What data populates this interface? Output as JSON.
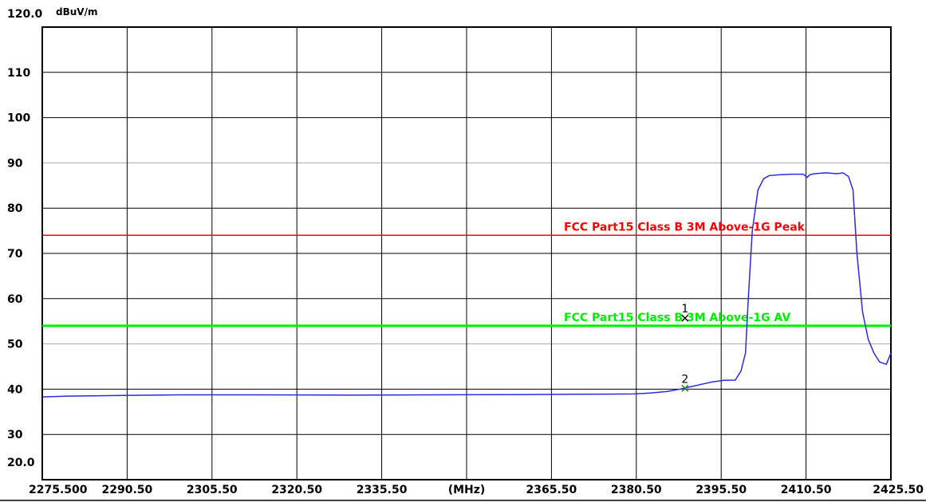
{
  "chart_data": {
    "type": "line",
    "ylabel": "dBuV/m",
    "xlabel": "(MHz)",
    "xlim": [
      2275.5,
      2425.5
    ],
    "ylim": [
      20,
      120
    ],
    "grid": true,
    "y_ticks": [
      {
        "value": 120,
        "label": "120.0"
      },
      {
        "value": 110,
        "label": "110"
      },
      {
        "value": 100,
        "label": "100"
      },
      {
        "value": 90,
        "label": "90"
      },
      {
        "value": 80,
        "label": "80"
      },
      {
        "value": 70,
        "label": "70"
      },
      {
        "value": 60,
        "label": "60"
      },
      {
        "value": 50,
        "label": "50"
      },
      {
        "value": 40,
        "label": "40"
      },
      {
        "value": 30,
        "label": "30"
      },
      {
        "value": 20,
        "label": "20.0"
      }
    ],
    "x_ticks": [
      {
        "value": 2275.5,
        "label": "2275.500"
      },
      {
        "value": 2290.5,
        "label": "2290.50"
      },
      {
        "value": 2305.5,
        "label": "2305.50"
      },
      {
        "value": 2320.5,
        "label": "2320.50"
      },
      {
        "value": 2335.5,
        "label": "2335.50"
      },
      {
        "value": 2350.5,
        "label": "(MHz)"
      },
      {
        "value": 2365.5,
        "label": "2365.50"
      },
      {
        "value": 2380.5,
        "label": "2380.50"
      },
      {
        "value": 2395.5,
        "label": "2395.50"
      },
      {
        "value": 2410.5,
        "label": "2410.50"
      },
      {
        "value": 2425.5,
        "label": "2425.50"
      }
    ],
    "limit_lines": [
      {
        "name": "FCC Part15 Class B 3M Above-1G Peak",
        "value": 74,
        "color": "#ff0000"
      },
      {
        "name": "FCC Part15 Class B 3M Above-1G AV",
        "value": 54,
        "color": "#00ee00"
      }
    ],
    "series": [
      {
        "color": "#2a2ae0",
        "x": [
          2275.5,
          2280,
          2290,
          2300,
          2310,
          2320,
          2330,
          2340,
          2350,
          2360,
          2370,
          2380,
          2383,
          2386,
          2388,
          2390,
          2392,
          2394,
          2396,
          2398,
          2399,
          2399.8,
          2400.3,
          2401,
          2402,
          2403,
          2404,
          2406,
          2408,
          2410,
          2410.7,
          2411.2,
          2412,
          2414,
          2416,
          2417,
          2418,
          2418.8,
          2419.5,
          2420.5,
          2421.5,
          2422.5,
          2423.5,
          2424.7,
          2425.5
        ],
        "y": [
          38.3,
          38.4,
          38.5,
          38.6,
          38.6,
          38.6,
          38.6,
          38.7,
          38.8,
          38.9,
          39.0,
          39.1,
          39.3,
          39.6,
          40.0,
          40.5,
          41.0,
          41.5,
          41.8,
          42.0,
          44.0,
          48.0,
          60.0,
          75.0,
          84.0,
          86.5,
          87.2,
          87.4,
          87.5,
          87.5,
          86.8,
          87.4,
          87.6,
          87.8,
          87.6,
          87.8,
          87.0,
          84.0,
          70.0,
          57.0,
          51.0,
          48.0,
          46.0,
          45.5,
          48.0
        ]
      }
    ],
    "markers": [
      {
        "label": "1",
        "x": 2389.1,
        "y": 55.7
      },
      {
        "label": "2",
        "x": 2389.1,
        "y": 40.2
      }
    ]
  }
}
